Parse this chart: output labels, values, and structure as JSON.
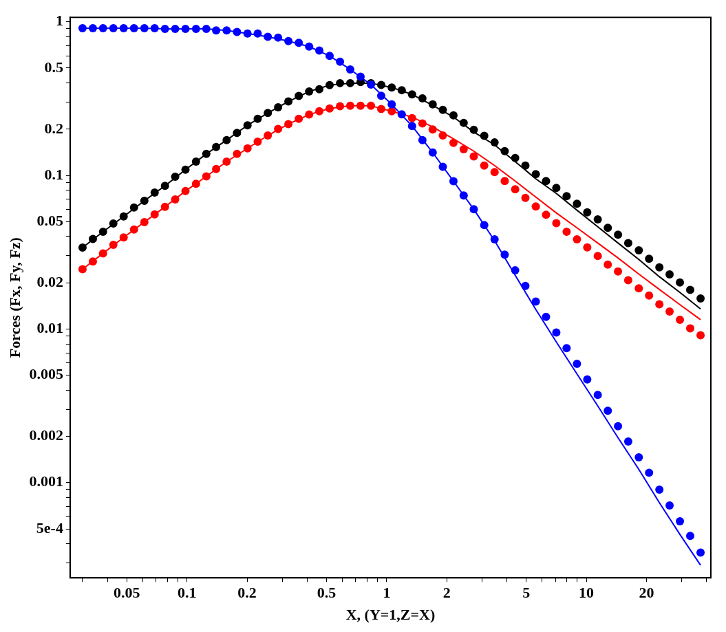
{
  "chart_data": {
    "type": "scatter",
    "xlabel": "X, (Y=1,Z=X)",
    "ylabel": "Forces (Fx, Fy, Fz)",
    "log": "xy",
    "grid": false,
    "legend": false,
    "marker": "circle",
    "xlim": [
      0.026,
      42
    ],
    "ylim": [
      0.00024,
      1.07
    ],
    "xticks": [
      {
        "value": 0.03,
        "label": null
      },
      {
        "value": 0.04,
        "label": null
      },
      0.05,
      {
        "value": 0.06,
        "label": null
      },
      {
        "value": 0.07,
        "label": null
      },
      {
        "value": 0.08,
        "label": null
      },
      {
        "value": 0.09,
        "label": null
      },
      0.1,
      0.2,
      {
        "value": 0.3,
        "label": null
      },
      {
        "value": 0.4,
        "label": null
      },
      0.5,
      {
        "value": 0.6,
        "label": null
      },
      {
        "value": 0.7,
        "label": null
      },
      {
        "value": 0.8,
        "label": null
      },
      {
        "value": 0.9,
        "label": null
      },
      1,
      2,
      {
        "value": 3,
        "label": null
      },
      {
        "value": 4,
        "label": null
      },
      5,
      {
        "value": 6,
        "label": null
      },
      {
        "value": 7,
        "label": null
      },
      {
        "value": 8,
        "label": null
      },
      {
        "value": 9,
        "label": null
      },
      10,
      20,
      {
        "value": 30,
        "label": null
      },
      {
        "value": 40,
        "label": null
      }
    ],
    "yticks": [
      {
        "value": 0.0003,
        "label": null
      },
      {
        "value": 0.0004,
        "label": null
      },
      {
        "value": 0.0005,
        "label": "5e-4"
      },
      {
        "value": 0.0006,
        "label": null
      },
      {
        "value": 0.0007,
        "label": null
      },
      {
        "value": 0.0008,
        "label": null
      },
      {
        "value": 0.0009,
        "label": null
      },
      0.001,
      0.002,
      {
        "value": 0.003,
        "label": null
      },
      {
        "value": 0.004,
        "label": null
      },
      0.005,
      {
        "value": 0.006,
        "label": null
      },
      {
        "value": 0.007,
        "label": null
      },
      {
        "value": 0.008,
        "label": null
      },
      {
        "value": 0.009,
        "label": null
      },
      0.01,
      0.02,
      {
        "value": 0.03,
        "label": null
      },
      {
        "value": 0.04,
        "label": null
      },
      0.05,
      {
        "value": 0.06,
        "label": null
      },
      {
        "value": 0.07,
        "label": null
      },
      {
        "value": 0.08,
        "label": null
      },
      {
        "value": 0.09,
        "label": null
      },
      0.1,
      0.2,
      {
        "value": 0.3,
        "label": null
      },
      {
        "value": 0.4,
        "label": null
      },
      0.5,
      {
        "value": 0.6,
        "label": null
      },
      {
        "value": 0.7,
        "label": null
      },
      {
        "value": 0.8,
        "label": null
      },
      {
        "value": 0.9,
        "label": null
      },
      1
    ],
    "x": [
      0.03,
      0.0338,
      0.038,
      0.0428,
      0.0482,
      0.0543,
      0.0612,
      0.0689,
      0.0776,
      0.0873,
      0.0983,
      0.111,
      0.125,
      0.14,
      0.158,
      0.178,
      0.201,
      0.226,
      0.254,
      0.286,
      0.322,
      0.363,
      0.409,
      0.46,
      0.518,
      0.584,
      0.657,
      0.74,
      0.834,
      0.939,
      1.06,
      1.19,
      1.34,
      1.51,
      1.7,
      1.91,
      2.16,
      2.43,
      2.73,
      3.08,
      3.47,
      3.9,
      4.4,
      4.95,
      5.58,
      6.28,
      7.07,
      7.96,
      8.97,
      10.1,
      11.4,
      12.8,
      14.4,
      16.2,
      18.3,
      20.6,
      23.2,
      26.1,
      29.4,
      33.1,
      37.3
    ],
    "series": [
      {
        "type": "line",
        "marker": "none",
        "color": "#0000ff",
        "x": [
          0.03,
          0.038,
          0.0482,
          0.0612,
          0.0776,
          0.0983,
          0.125,
          0.158,
          0.201,
          0.254,
          0.322,
          0.409,
          0.518,
          0.657,
          0.834,
          1.06,
          1.34,
          1.7,
          2.16,
          2.73,
          3.47,
          4.4,
          5.58,
          7.07,
          8.97,
          11.4,
          14.4,
          18.3,
          23.2,
          29.4,
          37.3
        ],
        "values": [
          0.91,
          0.91,
          0.91,
          0.91,
          0.9,
          0.9,
          0.9,
          0.88,
          0.84,
          0.8,
          0.75,
          0.69,
          0.6,
          0.49,
          0.39,
          0.29,
          0.21,
          0.141,
          0.0917,
          0.0602,
          0.0376,
          0.0224,
          0.0134,
          0.00824,
          0.0051,
          0.00316,
          0.00196,
          0.00122,
          0.00074,
          0.00046,
          0.00029
        ]
      },
      {
        "type": "line",
        "marker": "none",
        "color": "#ff0000",
        "x": [
          0.03,
          0.038,
          0.0482,
          0.0612,
          0.0776,
          0.0983,
          0.125,
          0.158,
          0.201,
          0.254,
          0.322,
          0.409,
          0.518,
          0.657,
          0.834,
          1.06,
          1.34,
          1.7,
          2.16,
          2.73,
          3.47,
          4.4,
          5.58,
          7.07,
          8.97,
          11.4,
          14.4,
          18.3,
          23.2,
          29.4,
          37.3
        ],
        "values": [
          0.0245,
          0.0311,
          0.0395,
          0.0497,
          0.0624,
          0.0791,
          0.0986,
          0.123,
          0.15,
          0.182,
          0.216,
          0.249,
          0.273,
          0.284,
          0.284,
          0.262,
          0.24,
          0.207,
          0.173,
          0.144,
          0.116,
          0.0919,
          0.0723,
          0.057,
          0.0456,
          0.0363,
          0.029,
          0.0228,
          0.0181,
          0.0144,
          0.0115
        ]
      },
      {
        "type": "line",
        "marker": "none",
        "color": "#000000",
        "x": [
          0.03,
          0.038,
          0.0482,
          0.0612,
          0.0776,
          0.0983,
          0.125,
          0.158,
          0.201,
          0.254,
          0.322,
          0.409,
          0.518,
          0.657,
          0.834,
          1.06,
          1.34,
          1.7,
          2.16,
          2.73,
          3.47,
          4.4,
          5.58,
          7.07,
          8.97,
          11.4,
          14.4,
          18.3,
          23.2,
          29.4,
          37.3
        ],
        "values": [
          0.0339,
          0.043,
          0.0541,
          0.0684,
          0.0856,
          0.109,
          0.138,
          0.17,
          0.212,
          0.255,
          0.303,
          0.352,
          0.387,
          0.399,
          0.399,
          0.374,
          0.337,
          0.286,
          0.24,
          0.192,
          0.158,
          0.123,
          0.0951,
          0.0764,
          0.0594,
          0.0463,
          0.0363,
          0.0284,
          0.0219,
          0.0173,
          0.0135
        ]
      },
      {
        "type": "scatter",
        "color": "#0000ff",
        "values": [
          0.91,
          0.91,
          0.91,
          0.91,
          0.91,
          0.91,
          0.91,
          0.91,
          0.9,
          0.9,
          0.9,
          0.9,
          0.9,
          0.88,
          0.88,
          0.86,
          0.84,
          0.84,
          0.8,
          0.79,
          0.75,
          0.73,
          0.69,
          0.65,
          0.6,
          0.55,
          0.49,
          0.44,
          0.39,
          0.33,
          0.29,
          0.25,
          0.21,
          0.17,
          0.141,
          0.114,
          0.0917,
          0.074,
          0.0602,
          0.0475,
          0.0384,
          0.0305,
          0.0241,
          0.0191,
          0.0151,
          0.012,
          0.00949,
          0.00751,
          0.00594,
          0.0047,
          0.00372,
          0.00294,
          0.00233,
          0.00185,
          0.00146,
          0.00116,
          0.0009,
          0.00071,
          0.00056,
          0.00045,
          0.00035
        ]
      },
      {
        "type": "scatter",
        "color": "#ff0000",
        "values": [
          0.0245,
          0.0275,
          0.0311,
          0.0353,
          0.0395,
          0.0445,
          0.0497,
          0.0558,
          0.0624,
          0.0698,
          0.0791,
          0.0882,
          0.0986,
          0.11,
          0.123,
          0.138,
          0.15,
          0.166,
          0.182,
          0.201,
          0.216,
          0.234,
          0.249,
          0.262,
          0.273,
          0.282,
          0.284,
          0.284,
          0.284,
          0.271,
          0.262,
          null,
          0.236,
          0.218,
          0.199,
          0.182,
          0.163,
          0.148,
          0.133,
          0.116,
          0.105,
          0.092,
          0.0813,
          0.0715,
          0.0628,
          0.0555,
          0.0489,
          0.043,
          0.0384,
          0.034,
          0.0299,
          0.0263,
          0.0237,
          0.0208,
          0.0184,
          0.0165,
          0.0145,
          0.013,
          0.0115,
          0.0101,
          0.0091
        ]
      },
      {
        "type": "scatter",
        "color": "#000000",
        "values": [
          0.0339,
          0.0386,
          0.043,
          0.0487,
          0.0541,
          0.0618,
          0.0684,
          0.0773,
          0.0856,
          0.098,
          0.109,
          0.123,
          0.138,
          0.153,
          0.17,
          0.189,
          0.212,
          0.234,
          0.255,
          0.278,
          0.303,
          0.329,
          0.352,
          0.364,
          0.387,
          0.399,
          0.399,
          0.406,
          0.399,
          0.388,
          0.374,
          0.359,
          0.337,
          0.318,
          0.29,
          0.267,
          0.246,
          0.22,
          0.198,
          0.181,
          0.164,
          0.144,
          0.13,
          0.116,
          0.102,
          0.092,
          0.0829,
          0.0732,
          0.0655,
          0.0575,
          0.0518,
          0.0456,
          0.0411,
          0.0363,
          0.0325,
          0.0287,
          0.0252,
          0.0227,
          0.0201,
          0.018,
          0.0158
        ]
      }
    ]
  }
}
